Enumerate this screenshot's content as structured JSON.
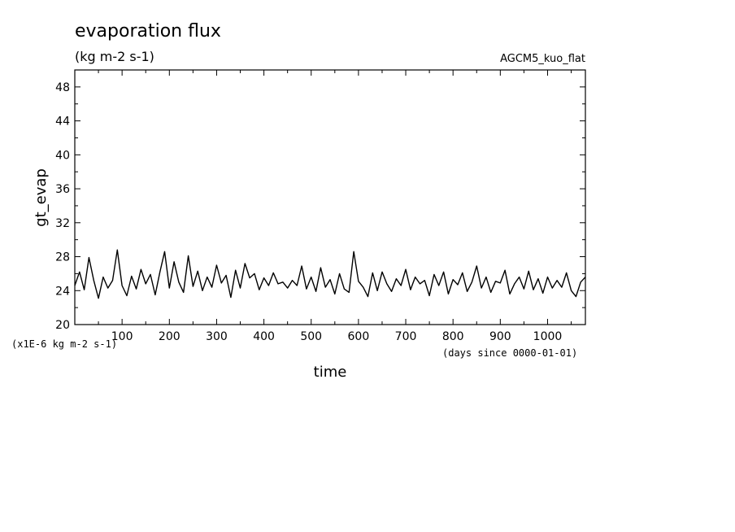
{
  "chart_data": {
    "type": "line",
    "title": "evaporation flux",
    "units": "(kg m-2 s-1)",
    "model_label": "AGCM5_kuo_flat",
    "ylabel": "gt_evap",
    "xlabel": "time",
    "y_scale_note": "(x1E-6 kg m-2 s-1)",
    "x_units_note": "(days since 0000-01-01)",
    "xlim": [
      0,
      1080
    ],
    "ylim": [
      20,
      50
    ],
    "x_ticks": [
      100,
      200,
      300,
      400,
      500,
      600,
      700,
      800,
      900,
      1000
    ],
    "y_ticks": [
      20,
      24,
      28,
      32,
      36,
      40,
      44,
      48
    ],
    "grid": false,
    "series": [
      {
        "x": [
          0,
          10,
          20,
          30,
          40,
          50,
          60,
          70,
          80,
          90,
          100,
          110,
          120,
          130,
          140,
          150,
          160,
          170,
          180,
          190,
          200,
          210,
          220,
          230,
          240,
          250,
          260,
          270,
          280,
          290,
          300,
          310,
          320,
          330,
          340,
          350,
          360,
          370,
          380,
          390,
          400,
          410,
          420,
          430,
          440,
          450,
          460,
          470,
          480,
          490,
          500,
          510,
          520,
          530,
          540,
          550,
          560,
          570,
          580,
          590,
          600,
          610,
          620,
          630,
          640,
          650,
          660,
          670,
          680,
          690,
          700,
          710,
          720,
          730,
          740,
          750,
          760,
          770,
          780,
          790,
          800,
          810,
          820,
          830,
          840,
          850,
          860,
          870,
          880,
          890,
          900,
          910,
          920,
          930,
          940,
          950,
          960,
          970,
          980,
          990,
          1000,
          1010,
          1020,
          1030,
          1040,
          1050,
          1060,
          1070,
          1080
        ],
        "y": [
          24.6,
          26.2,
          24.1,
          27.9,
          25.2,
          23.1,
          25.6,
          24.3,
          25.2,
          28.8,
          24.6,
          23.4,
          25.7,
          24.2,
          26.5,
          24.8,
          25.9,
          23.5,
          26.2,
          28.6,
          24.3,
          27.4,
          25.0,
          23.8,
          28.1,
          24.5,
          26.3,
          24.0,
          25.6,
          24.4,
          27.0,
          24.9,
          25.8,
          23.2,
          26.4,
          24.3,
          27.2,
          25.5,
          26.0,
          24.1,
          25.5,
          24.6,
          26.1,
          24.8,
          25.0,
          24.3,
          25.2,
          24.6,
          26.9,
          24.2,
          25.6,
          23.9,
          26.7,
          24.4,
          25.3,
          23.6,
          26.0,
          24.2,
          23.8,
          28.6,
          25.1,
          24.4,
          23.3,
          26.1,
          24.0,
          26.2,
          24.8,
          23.9,
          25.4,
          24.6,
          26.5,
          24.1,
          25.6,
          24.8,
          25.2,
          23.4,
          25.9,
          24.6,
          26.2,
          23.6,
          25.3,
          24.7,
          26.1,
          23.9,
          25.0,
          26.9,
          24.3,
          25.6,
          23.8,
          25.1,
          24.9,
          26.4,
          23.6,
          24.8,
          25.6,
          24.2,
          26.3,
          24.1,
          25.4,
          23.7,
          25.6,
          24.3,
          25.2,
          24.4,
          26.1,
          24.0,
          23.3,
          25.0,
          25.6
        ]
      }
    ]
  }
}
